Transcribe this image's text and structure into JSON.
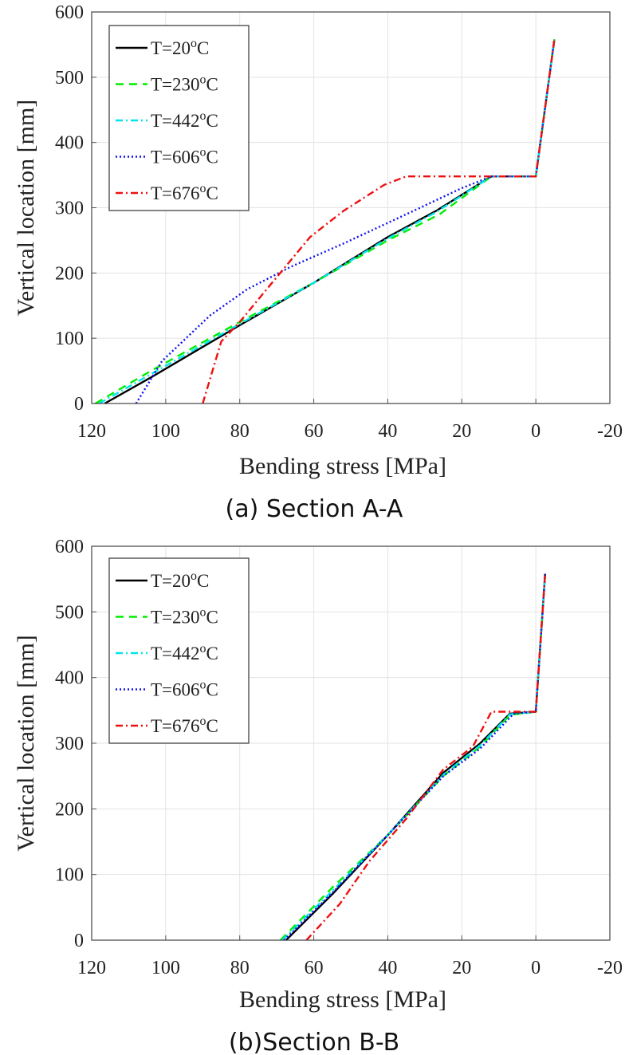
{
  "chart_data": [
    {
      "type": "line",
      "title": "",
      "caption": "(a) Section A-A",
      "xlabel": "Bending stress  [MPa]",
      "ylabel": "Vertical location  [mm]",
      "xlim": [
        120,
        -20
      ],
      "ylim": [
        0,
        600
      ],
      "x_ticks": [
        "120",
        "100",
        "80",
        "60",
        "40",
        "20",
        "0",
        "-20"
      ],
      "y_ticks": [
        "0",
        "100",
        "200",
        "300",
        "400",
        "500",
        "600"
      ],
      "grid": true,
      "legend_position": "top-left",
      "series": [
        {
          "name": "T=20",
          "sup": "o",
          "unit": "C",
          "color": "#000000",
          "dash": "",
          "x": [
            116.5,
            104,
            80,
            60,
            40,
            27,
            12,
            0,
            -5
          ],
          "y": [
            0,
            40,
            120,
            185,
            255,
            295,
            348,
            348,
            558
          ]
        },
        {
          "name": "T=230",
          "sup": "o",
          "unit": "C",
          "color": "#00ee00",
          "dash": "10 7",
          "x": [
            119,
            104,
            80,
            60,
            40,
            26,
            12,
            0,
            -5
          ],
          "y": [
            0,
            50,
            125,
            185,
            250,
            290,
            348,
            348,
            558
          ]
        },
        {
          "name": "T=442",
          "sup": "o",
          "unit": "C",
          "color": "#00e5ee",
          "dash": "9 4 2 4",
          "x": [
            118,
            104,
            80,
            60,
            40,
            27,
            12,
            0,
            -5
          ],
          "y": [
            0,
            45,
            122,
            185,
            253,
            293,
            348,
            348,
            558
          ]
        },
        {
          "name": "T=606",
          "sup": "o",
          "unit": "C",
          "color": "#1010ee",
          "dash": "2 3",
          "x": [
            108,
            101,
            88,
            78,
            66,
            52,
            35,
            20,
            12,
            0,
            -5
          ],
          "y": [
            0,
            65,
            135,
            175,
            210,
            245,
            290,
            330,
            348,
            348,
            558
          ]
        },
        {
          "name": "T=676",
          "sup": "o",
          "unit": "C",
          "color": "#ee1010",
          "dash": "9 4 2 4",
          "x": [
            90,
            85,
            80,
            72,
            61,
            52,
            41,
            35,
            20,
            0,
            -5
          ],
          "y": [
            0,
            95,
            125,
            180,
            255,
            295,
            335,
            348,
            348,
            348,
            558
          ]
        }
      ]
    },
    {
      "type": "line",
      "title": "",
      "caption": "(b)Section B-B",
      "xlabel": "Bending stress  [MPa]",
      "ylabel": "Vertical location  [mm]",
      "xlim": [
        120,
        -20
      ],
      "ylim": [
        0,
        600
      ],
      "x_ticks": [
        "120",
        "100",
        "80",
        "60",
        "40",
        "20",
        "0",
        "-20"
      ],
      "y_ticks": [
        "0",
        "100",
        "200",
        "300",
        "400",
        "500",
        "600"
      ],
      "grid": true,
      "legend_position": "top-left",
      "series": [
        {
          "name": "T=20",
          "sup": "o",
          "unit": "C",
          "color": "#000000",
          "dash": "",
          "x": [
            67.5,
            55,
            40,
            25,
            15,
            7,
            0,
            -2.5
          ],
          "y": [
            0,
            70,
            160,
            255,
            300,
            345,
            348,
            558
          ]
        },
        {
          "name": "T=230",
          "sup": "o",
          "unit": "C",
          "color": "#00ee00",
          "dash": "10 7",
          "x": [
            69,
            55,
            40,
            25,
            15,
            7,
            0,
            -2.5
          ],
          "y": [
            0,
            80,
            160,
            250,
            295,
            343,
            348,
            558
          ]
        },
        {
          "name": "T=442",
          "sup": "o",
          "unit": "C",
          "color": "#00e5ee",
          "dash": "9 4 2 4",
          "x": [
            68.5,
            55,
            40,
            25,
            15,
            7,
            0,
            -2.5
          ],
          "y": [
            0,
            75,
            160,
            252,
            297,
            344,
            348,
            558
          ]
        },
        {
          "name": "T=606",
          "sup": "o",
          "unit": "C",
          "color": "#1010ee",
          "dash": "2 3",
          "x": [
            68,
            55,
            40,
            25,
            15,
            6,
            0,
            -2.5
          ],
          "y": [
            0,
            72,
            160,
            250,
            292,
            345,
            348,
            558
          ]
        },
        {
          "name": "T=676",
          "sup": "o",
          "unit": "C",
          "color": "#ee1010",
          "dash": "9 4 2 4",
          "x": [
            62,
            53,
            45,
            35,
            25,
            17,
            12,
            0,
            -2.5
          ],
          "y": [
            0,
            55,
            120,
            185,
            260,
            295,
            348,
            348,
            558
          ]
        }
      ]
    }
  ]
}
